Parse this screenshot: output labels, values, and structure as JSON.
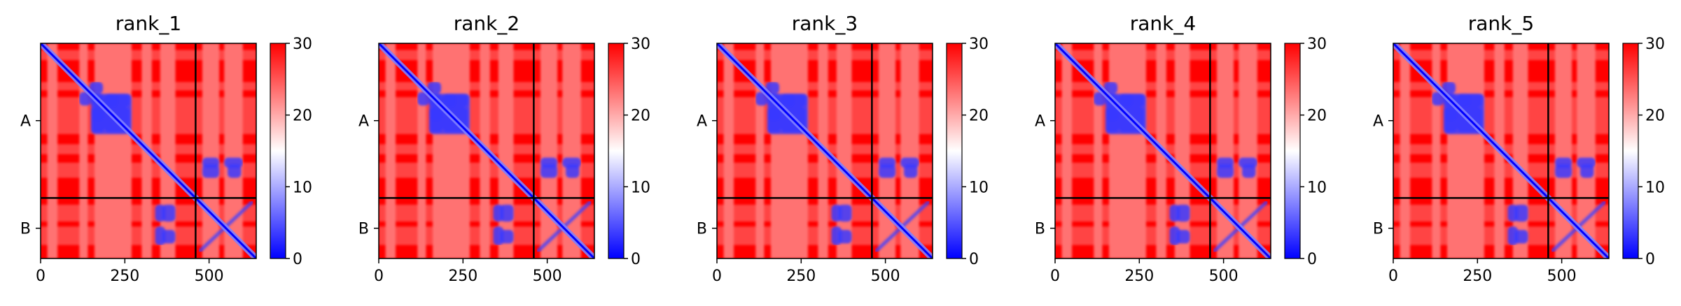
{
  "chart_data": [
    {
      "type": "heatmap",
      "title": "rank_1",
      "x_ticks": [
        "0",
        "250",
        "500"
      ],
      "x_tick_values": [
        0,
        250,
        500
      ],
      "y_ticks": [
        "A",
        "B"
      ],
      "chain_boundary": 460,
      "size": 640,
      "colorbar": {
        "ticks": [
          "0",
          "10",
          "20",
          "30"
        ],
        "tick_values": [
          0,
          10,
          20,
          30
        ],
        "min": 0,
        "max": 30
      }
    },
    {
      "type": "heatmap",
      "title": "rank_2",
      "x_ticks": [
        "0",
        "250",
        "500"
      ],
      "x_tick_values": [
        0,
        250,
        500
      ],
      "y_ticks": [
        "A",
        "B"
      ],
      "chain_boundary": 460,
      "size": 640,
      "colorbar": {
        "ticks": [
          "0",
          "10",
          "20",
          "30"
        ],
        "tick_values": [
          0,
          10,
          20,
          30
        ],
        "min": 0,
        "max": 30
      }
    },
    {
      "type": "heatmap",
      "title": "rank_3",
      "x_ticks": [
        "0",
        "250",
        "500"
      ],
      "x_tick_values": [
        0,
        250,
        500
      ],
      "y_ticks": [
        "A",
        "B"
      ],
      "chain_boundary": 460,
      "size": 640,
      "colorbar": {
        "ticks": [
          "0",
          "10",
          "20",
          "30"
        ],
        "tick_values": [
          0,
          10,
          20,
          30
        ],
        "min": 0,
        "max": 30
      }
    },
    {
      "type": "heatmap",
      "title": "rank_4",
      "x_ticks": [
        "0",
        "250",
        "500"
      ],
      "x_tick_values": [
        0,
        250,
        500
      ],
      "y_ticks": [
        "A",
        "B"
      ],
      "chain_boundary": 460,
      "size": 640,
      "colorbar": {
        "ticks": [
          "0",
          "10",
          "20",
          "30"
        ],
        "tick_values": [
          0,
          10,
          20,
          30
        ],
        "min": 0,
        "max": 30
      }
    },
    {
      "type": "heatmap",
      "title": "rank_5",
      "x_ticks": [
        "0",
        "250",
        "500"
      ],
      "x_tick_values": [
        0,
        250,
        500
      ],
      "y_ticks": [
        "A",
        "B"
      ],
      "chain_boundary": 460,
      "size": 640,
      "colorbar": {
        "ticks": [
          "0",
          "10",
          "20",
          "30"
        ],
        "tick_values": [
          0,
          10,
          20,
          30
        ],
        "min": 0,
        "max": 30
      }
    }
  ],
  "colors": {
    "high": "#ff0000",
    "mid": "#ffffff",
    "low": "#0000ff",
    "frame": "#000000"
  }
}
